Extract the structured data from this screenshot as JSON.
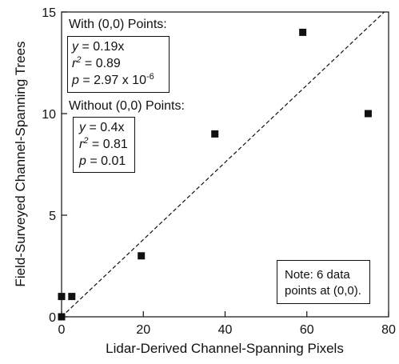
{
  "chart_data": {
    "type": "scatter",
    "xlabel": "Lidar-Derived Channel-Spanning Pixels",
    "ylabel": "Field-Surveyed Channel-Spanning Trees",
    "xlim": [
      0,
      80
    ],
    "ylim": [
      0,
      15
    ],
    "xticks": [
      0,
      20,
      40,
      60,
      80
    ],
    "yticks": [
      0,
      5,
      10,
      15
    ],
    "grid": false,
    "points": [
      {
        "x": 0,
        "y": 0
      },
      {
        "x": 0,
        "y": 1
      },
      {
        "x": 2.5,
        "y": 1
      },
      {
        "x": 19.5,
        "y": 3
      },
      {
        "x": 37.5,
        "y": 9
      },
      {
        "x": 59,
        "y": 14
      },
      {
        "x": 75,
        "y": 10
      }
    ],
    "fit_line": {
      "slope": 0.19,
      "intercept": 0,
      "style": "dashed"
    },
    "annotations": {
      "with_zero": {
        "heading": "With (0,0) Points:",
        "eq_var": "y",
        "eq_rest": " = 0.19x",
        "r2_var": "r",
        "r2_exp": "2",
        "r2_rest": " = 0.89",
        "p_var": "p",
        "p_rest": " = 2.97 x 10",
        "p_exp": "-6"
      },
      "without_zero": {
        "heading": "Without (0,0) Points:",
        "eq_var": "y",
        "eq_rest": " = 0.4x",
        "r2_var": "r",
        "r2_exp": "2",
        "r2_rest": " = 0.81",
        "p_var": "p",
        "p_rest": " = 0.01"
      },
      "note_line1": "Note: 6 data",
      "note_line2": "points at (0,0)."
    }
  }
}
